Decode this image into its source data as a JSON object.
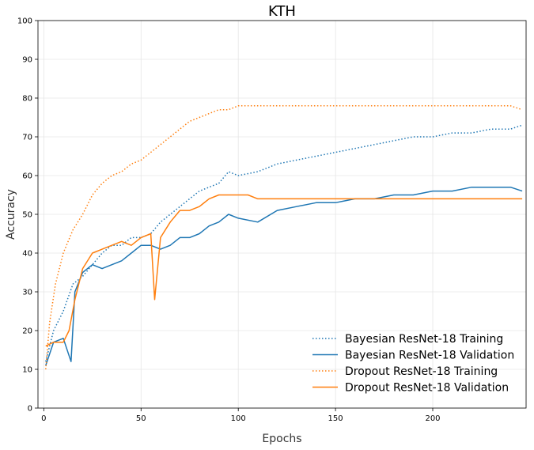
{
  "chart_data": {
    "type": "line",
    "title": "KTH",
    "xlabel": "Epochs",
    "ylabel": "Accuracy",
    "xlim": [
      -3,
      248
    ],
    "ylim": [
      0,
      100
    ],
    "xticks": [
      0,
      50,
      100,
      150,
      200
    ],
    "yticks": [
      0,
      10,
      20,
      30,
      40,
      50,
      60,
      70,
      80,
      90,
      100
    ],
    "grid": true,
    "legend_position": "lower-right",
    "series": [
      {
        "name": "Bayesian ResNet-18 Training",
        "color": "#1f77b4",
        "style": "dotted",
        "points": [
          [
            1,
            12
          ],
          [
            5,
            20
          ],
          [
            10,
            25
          ],
          [
            15,
            32
          ],
          [
            20,
            34
          ],
          [
            25,
            37
          ],
          [
            30,
            40
          ],
          [
            35,
            42
          ],
          [
            40,
            42
          ],
          [
            45,
            44
          ],
          [
            50,
            44
          ],
          [
            55,
            45
          ],
          [
            60,
            48
          ],
          [
            65,
            50
          ],
          [
            70,
            52
          ],
          [
            75,
            54
          ],
          [
            80,
            56
          ],
          [
            85,
            57
          ],
          [
            90,
            58
          ],
          [
            95,
            61
          ],
          [
            100,
            60
          ],
          [
            110,
            61
          ],
          [
            120,
            63
          ],
          [
            130,
            64
          ],
          [
            140,
            65
          ],
          [
            150,
            66
          ],
          [
            160,
            67
          ],
          [
            170,
            68
          ],
          [
            180,
            69
          ],
          [
            190,
            70
          ],
          [
            200,
            70
          ],
          [
            210,
            71
          ],
          [
            220,
            71
          ],
          [
            230,
            72
          ],
          [
            240,
            72
          ],
          [
            246,
            73
          ]
        ]
      },
      {
        "name": "Bayesian ResNet-18 Validation",
        "color": "#1f77b4",
        "style": "solid",
        "points": [
          [
            1,
            11
          ],
          [
            5,
            17
          ],
          [
            10,
            18
          ],
          [
            14,
            12
          ],
          [
            16,
            30
          ],
          [
            20,
            35
          ],
          [
            25,
            37
          ],
          [
            30,
            36
          ],
          [
            35,
            37
          ],
          [
            40,
            38
          ],
          [
            45,
            40
          ],
          [
            50,
            42
          ],
          [
            55,
            42
          ],
          [
            60,
            41
          ],
          [
            65,
            42
          ],
          [
            70,
            44
          ],
          [
            75,
            44
          ],
          [
            80,
            45
          ],
          [
            85,
            47
          ],
          [
            90,
            48
          ],
          [
            95,
            50
          ],
          [
            100,
            49
          ],
          [
            110,
            48
          ],
          [
            120,
            51
          ],
          [
            130,
            52
          ],
          [
            140,
            53
          ],
          [
            150,
            53
          ],
          [
            160,
            54
          ],
          [
            170,
            54
          ],
          [
            180,
            55
          ],
          [
            190,
            55
          ],
          [
            200,
            56
          ],
          [
            210,
            56
          ],
          [
            220,
            57
          ],
          [
            230,
            57
          ],
          [
            240,
            57
          ],
          [
            246,
            56
          ]
        ]
      },
      {
        "name": "Dropout ResNet-18 Training",
        "color": "#ff7f0e",
        "style": "dotted",
        "points": [
          [
            1,
            10
          ],
          [
            3,
            22
          ],
          [
            6,
            32
          ],
          [
            10,
            40
          ],
          [
            15,
            46
          ],
          [
            20,
            50
          ],
          [
            25,
            55
          ],
          [
            30,
            58
          ],
          [
            35,
            60
          ],
          [
            40,
            61
          ],
          [
            45,
            63
          ],
          [
            50,
            64
          ],
          [
            55,
            66
          ],
          [
            60,
            68
          ],
          [
            65,
            70
          ],
          [
            70,
            72
          ],
          [
            75,
            74
          ],
          [
            80,
            75
          ],
          [
            85,
            76
          ],
          [
            90,
            77
          ],
          [
            95,
            77
          ],
          [
            100,
            78
          ],
          [
            110,
            78
          ],
          [
            120,
            78
          ],
          [
            130,
            78
          ],
          [
            140,
            78
          ],
          [
            150,
            78
          ],
          [
            160,
            78
          ],
          [
            170,
            78
          ],
          [
            180,
            78
          ],
          [
            190,
            78
          ],
          [
            200,
            78
          ],
          [
            210,
            78
          ],
          [
            220,
            78
          ],
          [
            230,
            78
          ],
          [
            240,
            78
          ],
          [
            246,
            77
          ]
        ]
      },
      {
        "name": "Dropout ResNet-18 Validation",
        "color": "#ff7f0e",
        "style": "solid",
        "points": [
          [
            1,
            16
          ],
          [
            5,
            17
          ],
          [
            10,
            17
          ],
          [
            13,
            20
          ],
          [
            16,
            28
          ],
          [
            20,
            36
          ],
          [
            25,
            40
          ],
          [
            30,
            41
          ],
          [
            35,
            42
          ],
          [
            40,
            43
          ],
          [
            45,
            42
          ],
          [
            50,
            44
          ],
          [
            55,
            45
          ],
          [
            57,
            28
          ],
          [
            60,
            44
          ],
          [
            65,
            48
          ],
          [
            70,
            51
          ],
          [
            75,
            51
          ],
          [
            80,
            52
          ],
          [
            85,
            54
          ],
          [
            90,
            55
          ],
          [
            95,
            55
          ],
          [
            100,
            55
          ],
          [
            105,
            55
          ],
          [
            110,
            54
          ],
          [
            120,
            54
          ],
          [
            130,
            54
          ],
          [
            140,
            54
          ],
          [
            150,
            54
          ],
          [
            160,
            54
          ],
          [
            170,
            54
          ],
          [
            180,
            54
          ],
          [
            190,
            54
          ],
          [
            200,
            54
          ],
          [
            210,
            54
          ],
          [
            220,
            54
          ],
          [
            230,
            54
          ],
          [
            240,
            54
          ],
          [
            246,
            54
          ]
        ]
      }
    ]
  }
}
